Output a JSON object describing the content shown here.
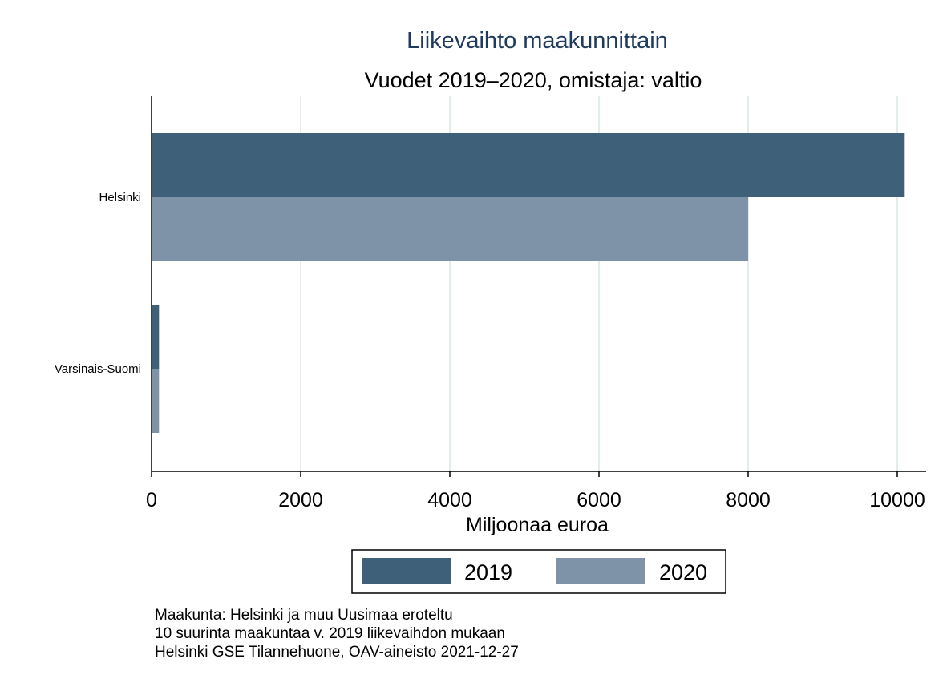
{
  "chart_data": {
    "type": "bar",
    "orientation": "horizontal",
    "title": "Liikevaihto maakunnittain",
    "subtitle": "Vuodet 2019–2020, omistaja: valtio",
    "categories": [
      "Helsinki",
      "Varsinais-Suomi"
    ],
    "series": [
      {
        "name": "2019",
        "values": [
          10100,
          100
        ]
      },
      {
        "name": "2020",
        "values": [
          8000,
          100
        ]
      }
    ],
    "xlabel": "Miljoonaa euroa",
    "ylabel": "",
    "xlim": [
      0,
      10400
    ],
    "xticks": [
      0,
      2000,
      4000,
      6000,
      8000,
      10000
    ],
    "grid": true,
    "legend_position": "bottom",
    "notes": [
      "Maakunta: Helsinki ja muu Uusimaa eroteltu",
      "10 suurinta maakuntaa v. 2019 liikevaihdon mukaan",
      "Helsinki GSE Tilannehuone, OAV-aineisto 2021-12-27"
    ]
  },
  "colors": {
    "series_2019": "#3e6179",
    "series_2020": "#7e93a8",
    "title": "#1f3a5f",
    "grid": "#e4ecec"
  }
}
